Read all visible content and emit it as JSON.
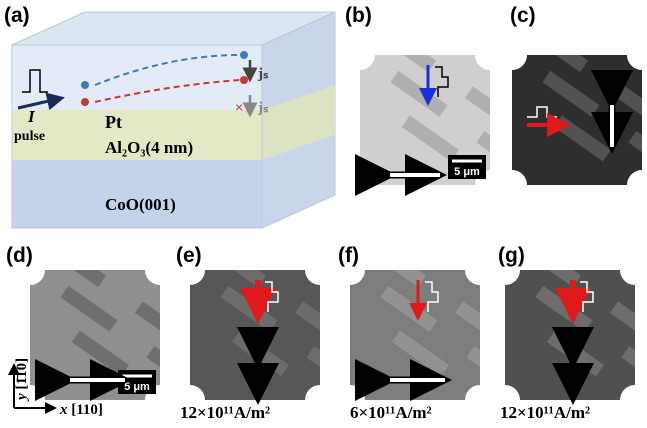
{
  "panels": {
    "a": {
      "label": "(a)",
      "layers": [
        "Pt",
        "Al₂O₃(4 nm)",
        "CoO(001)"
      ],
      "current_label": "I",
      "pulse_label": "pulse",
      "spin_current_labels": [
        "jₛ",
        "jₛ"
      ]
    },
    "b": {
      "label": "(b)",
      "scale_bar": "5 μm"
    },
    "c": {
      "label": "(c)"
    },
    "d": {
      "label": "(d)",
      "scale_bar": "5 μm",
      "axes": {
        "y": {
          "symbol": "y",
          "direction": "[1̄10]"
        },
        "x": {
          "symbol": "x",
          "direction": "[110]"
        }
      }
    },
    "e": {
      "label": "(e)",
      "current_density": "12×10¹¹A/m²"
    },
    "f": {
      "label": "(f)",
      "current_density": "6×10¹¹A/m²"
    },
    "g": {
      "label": "(g)",
      "current_density": "12×10¹¹A/m²"
    }
  }
}
